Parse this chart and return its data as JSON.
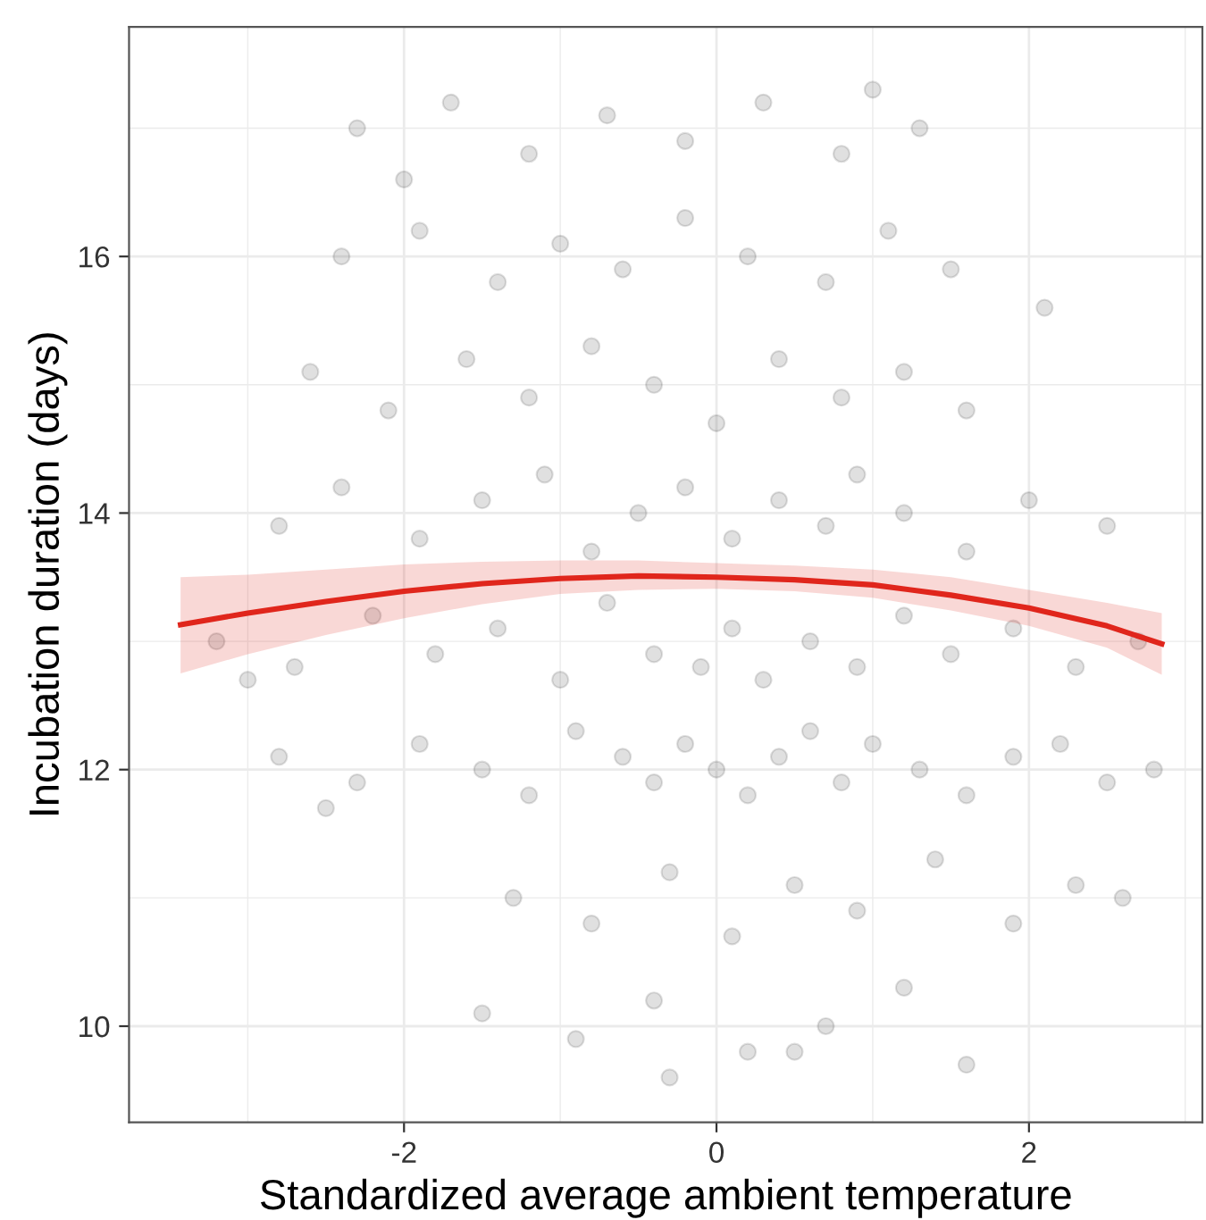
{
  "chart_data": {
    "type": "scatter",
    "xlabel": "Standardized average ambient temperature",
    "ylabel": "Incubation duration (days)",
    "xlim": [
      -3.76,
      3.11
    ],
    "ylim": [
      9.25,
      17.79
    ],
    "xticks": [
      -2,
      0,
      2
    ],
    "yticks": [
      10,
      12,
      14,
      16
    ],
    "grid": true,
    "series": [
      {
        "marker": "circle",
        "color": "#000000",
        "x": [
          -2.8,
          -2.3,
          -1.9,
          -1.5,
          -1.2,
          -0.9,
          -0.6,
          -0.4,
          -0.2,
          0.0,
          0.2,
          0.4,
          0.6,
          0.8,
          1.0,
          1.3,
          1.6,
          1.9,
          2.2,
          2.5,
          2.8,
          -3.2,
          -2.7,
          -2.2,
          -1.8,
          -1.4,
          -1.0,
          -0.7,
          -0.4,
          -0.1,
          0.1,
          0.3,
          0.6,
          0.9,
          1.2,
          1.5,
          1.9,
          2.3,
          2.7,
          -2.8,
          -2.4,
          -1.9,
          -1.5,
          -1.1,
          -0.8,
          -0.5,
          -0.2,
          0.1,
          0.4,
          0.7,
          0.9,
          1.2,
          1.6,
          2.0,
          2.5,
          -2.6,
          -2.1,
          -1.6,
          -1.2,
          -0.8,
          -0.4,
          0.0,
          0.4,
          0.8,
          1.2,
          1.6,
          -2.4,
          -1.9,
          -1.4,
          -1.0,
          -0.6,
          -0.2,
          0.2,
          0.7,
          1.1,
          1.5,
          -2.3,
          -1.7,
          -1.2,
          -0.7,
          -0.2,
          0.3,
          0.8,
          1.3,
          -1.3,
          -0.8,
          -0.3,
          0.1,
          0.5,
          0.9,
          1.4,
          1.9,
          2.3,
          2.6,
          -1.5,
          -0.9,
          -0.4,
          0.2,
          0.7,
          1.2,
          1.6,
          -3.0,
          -2.5,
          -0.3,
          0.5,
          1.0,
          -2.0,
          2.1
        ],
        "values": [
          12.1,
          11.9,
          12.2,
          12.0,
          11.8,
          12.3,
          12.1,
          11.9,
          12.2,
          12.0,
          11.8,
          12.1,
          12.3,
          11.9,
          12.2,
          12.0,
          11.8,
          12.1,
          12.2,
          11.9,
          12.0,
          13.0,
          12.8,
          13.2,
          12.9,
          13.1,
          12.7,
          13.3,
          12.9,
          12.8,
          13.1,
          12.7,
          13.0,
          12.8,
          13.2,
          12.9,
          13.1,
          12.8,
          13.0,
          13.9,
          14.2,
          13.8,
          14.1,
          14.3,
          13.7,
          14.0,
          14.2,
          13.8,
          14.1,
          13.9,
          14.3,
          14.0,
          13.7,
          14.1,
          13.9,
          15.1,
          14.8,
          15.2,
          14.9,
          15.3,
          15.0,
          14.7,
          15.2,
          14.9,
          15.1,
          14.8,
          16.0,
          16.2,
          15.8,
          16.1,
          15.9,
          16.3,
          16.0,
          15.8,
          16.2,
          15.9,
          17.0,
          17.2,
          16.8,
          17.1,
          16.9,
          17.2,
          16.8,
          17.0,
          11.0,
          10.8,
          11.2,
          10.7,
          11.1,
          10.9,
          11.3,
          10.8,
          11.1,
          11.0,
          10.1,
          9.9,
          10.2,
          9.8,
          10.0,
          10.3,
          9.7,
          12.7,
          11.7,
          9.6,
          9.8,
          17.3,
          16.6,
          15.6
        ]
      },
      {
        "type": "line",
        "color": "#e0261c",
        "x": [
          -3.43,
          -3,
          -2.5,
          -2,
          -1.5,
          -1,
          -0.5,
          0,
          0.5,
          1,
          1.5,
          2,
          2.5,
          2.85
        ],
        "values": [
          13.13,
          13.22,
          13.31,
          13.39,
          13.45,
          13.49,
          13.51,
          13.5,
          13.48,
          13.44,
          13.36,
          13.26,
          13.12,
          12.98
        ],
        "lower": [
          12.75,
          12.9,
          13.05,
          13.18,
          13.29,
          13.37,
          13.4,
          13.41,
          13.39,
          13.34,
          13.24,
          13.12,
          12.95,
          12.74
        ],
        "upper": [
          13.5,
          13.52,
          13.56,
          13.6,
          13.62,
          13.63,
          13.63,
          13.61,
          13.59,
          13.56,
          13.5,
          13.4,
          13.3,
          13.22
        ]
      }
    ]
  }
}
